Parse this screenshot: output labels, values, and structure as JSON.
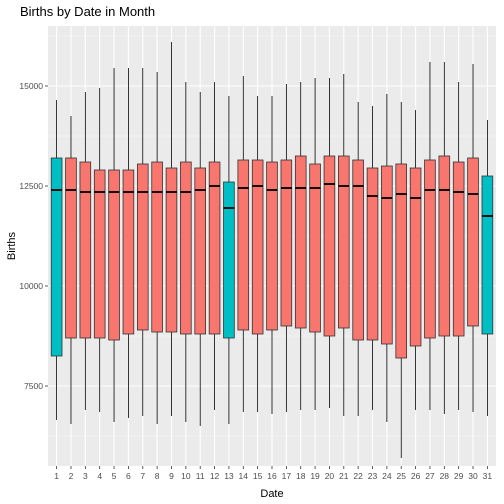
{
  "chart_data": {
    "type": "boxplot",
    "title": "Births by Date in Month",
    "xlabel": "Date",
    "ylabel": "Births",
    "ylim": [
      5500,
      16500
    ],
    "y_ticks": [
      7500,
      10000,
      12500,
      15000
    ],
    "y_tick_labels": [
      "7500",
      "10000",
      "12500",
      "15000"
    ],
    "grid": true,
    "legend": "none",
    "colors": {
      "panel": "#ebebeb",
      "grid_major": "#ffffff",
      "box_default": "#f8766d",
      "box_highlight": "#00bfc4",
      "outline": "#000000"
    },
    "categories": [
      "1",
      "2",
      "3",
      "4",
      "5",
      "6",
      "7",
      "8",
      "9",
      "10",
      "11",
      "12",
      "13",
      "14",
      "15",
      "16",
      "17",
      "18",
      "19",
      "20",
      "21",
      "22",
      "23",
      "24",
      "25",
      "26",
      "27",
      "28",
      "29",
      "30",
      "31"
    ],
    "boxes": [
      {
        "x": "1",
        "min": 6650,
        "q1": 8250,
        "median": 12400,
        "q3": 13200,
        "max": 14650,
        "fill": "#00bfc4"
      },
      {
        "x": "2",
        "min": 6550,
        "q1": 8700,
        "median": 12400,
        "q3": 13200,
        "max": 14250,
        "fill": "#f8766d"
      },
      {
        "x": "3",
        "min": 6900,
        "q1": 8700,
        "median": 12350,
        "q3": 13100,
        "max": 14850,
        "fill": "#f8766d"
      },
      {
        "x": "4",
        "min": 6850,
        "q1": 8700,
        "median": 12350,
        "q3": 12900,
        "max": 14950,
        "fill": "#f8766d"
      },
      {
        "x": "5",
        "min": 6600,
        "q1": 8650,
        "median": 12350,
        "q3": 12900,
        "max": 15450,
        "fill": "#f8766d"
      },
      {
        "x": "6",
        "min": 6700,
        "q1": 8800,
        "median": 12350,
        "q3": 12900,
        "max": 15450,
        "fill": "#f8766d"
      },
      {
        "x": "7",
        "min": 6750,
        "q1": 8900,
        "median": 12350,
        "q3": 13050,
        "max": 15450,
        "fill": "#f8766d"
      },
      {
        "x": "8",
        "min": 6550,
        "q1": 8850,
        "median": 12350,
        "q3": 13100,
        "max": 15350,
        "fill": "#f8766d"
      },
      {
        "x": "9",
        "min": 6750,
        "q1": 8850,
        "median": 12350,
        "q3": 12950,
        "max": 16100,
        "fill": "#f8766d"
      },
      {
        "x": "10",
        "min": 6600,
        "q1": 8800,
        "median": 12350,
        "q3": 13100,
        "max": 15100,
        "fill": "#f8766d"
      },
      {
        "x": "11",
        "min": 6500,
        "q1": 8800,
        "median": 12400,
        "q3": 12950,
        "max": 14850,
        "fill": "#f8766d"
      },
      {
        "x": "12",
        "min": 6900,
        "q1": 8800,
        "median": 12500,
        "q3": 13100,
        "max": 15100,
        "fill": "#f8766d"
      },
      {
        "x": "13",
        "min": 6550,
        "q1": 8700,
        "median": 11950,
        "q3": 12600,
        "max": 14750,
        "fill": "#00bfc4"
      },
      {
        "x": "14",
        "min": 6850,
        "q1": 8900,
        "median": 12450,
        "q3": 13150,
        "max": 15250,
        "fill": "#f8766d"
      },
      {
        "x": "15",
        "min": 6850,
        "q1": 8800,
        "median": 12500,
        "q3": 13150,
        "max": 14750,
        "fill": "#f8766d"
      },
      {
        "x": "16",
        "min": 6800,
        "q1": 8900,
        "median": 12400,
        "q3": 13100,
        "max": 14750,
        "fill": "#f8766d"
      },
      {
        "x": "17",
        "min": 6850,
        "q1": 9000,
        "median": 12450,
        "q3": 13150,
        "max": 15050,
        "fill": "#f8766d"
      },
      {
        "x": "18",
        "min": 6900,
        "q1": 8950,
        "median": 12450,
        "q3": 13250,
        "max": 15100,
        "fill": "#f8766d"
      },
      {
        "x": "19",
        "min": 6900,
        "q1": 8850,
        "median": 12450,
        "q3": 13050,
        "max": 15200,
        "fill": "#f8766d"
      },
      {
        "x": "20",
        "min": 6950,
        "q1": 8750,
        "median": 12550,
        "q3": 13250,
        "max": 15200,
        "fill": "#f8766d"
      },
      {
        "x": "21",
        "min": 6750,
        "q1": 8950,
        "median": 12500,
        "q3": 13250,
        "max": 15300,
        "fill": "#f8766d"
      },
      {
        "x": "22",
        "min": 6750,
        "q1": 8650,
        "median": 12500,
        "q3": 13150,
        "max": 14600,
        "fill": "#f8766d"
      },
      {
        "x": "23",
        "min": 6900,
        "q1": 8650,
        "median": 12250,
        "q3": 12950,
        "max": 14500,
        "fill": "#f8766d"
      },
      {
        "x": "24",
        "min": 6600,
        "q1": 8550,
        "median": 12200,
        "q3": 13000,
        "max": 14800,
        "fill": "#f8766d"
      },
      {
        "x": "25",
        "min": 5700,
        "q1": 8200,
        "median": 12300,
        "q3": 13050,
        "max": 14600,
        "fill": "#f8766d"
      },
      {
        "x": "26",
        "min": 6900,
        "q1": 8500,
        "median": 12200,
        "q3": 12950,
        "max": 14400,
        "fill": "#f8766d"
      },
      {
        "x": "27",
        "min": 6900,
        "q1": 8700,
        "median": 12400,
        "q3": 13150,
        "max": 15600,
        "fill": "#f8766d"
      },
      {
        "x": "28",
        "min": 6800,
        "q1": 8750,
        "median": 12400,
        "q3": 13250,
        "max": 15600,
        "fill": "#f8766d"
      },
      {
        "x": "29",
        "min": 6900,
        "q1": 8750,
        "median": 12350,
        "q3": 13100,
        "max": 15100,
        "fill": "#f8766d"
      },
      {
        "x": "30",
        "min": 6850,
        "q1": 9000,
        "median": 12300,
        "q3": 13200,
        "max": 15550,
        "fill": "#f8766d"
      },
      {
        "x": "31",
        "min": 6750,
        "q1": 8800,
        "median": 11750,
        "q3": 12750,
        "max": 14150,
        "fill": "#00bfc4"
      }
    ]
  }
}
